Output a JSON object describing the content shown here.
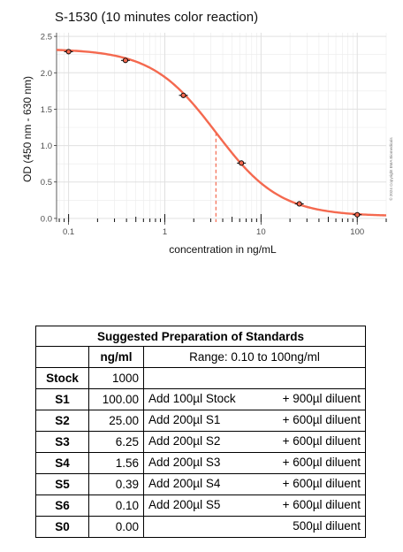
{
  "chart_data": {
    "type": "line",
    "title": "S-1530 (10 minutes color reaction)",
    "xlabel": "concentration in ng/mL",
    "ylabel": "OD (450 nm - 630 nm)",
    "x_scale": "log",
    "xlim": [
      0.075,
      200
    ],
    "ylim": [
      -0.05,
      2.55
    ],
    "x_ticks": [
      0.1,
      1,
      10,
      100
    ],
    "x_tick_labels": [
      "0.1",
      "1",
      "10",
      "100"
    ],
    "y_ticks": [
      0.0,
      0.5,
      1.0,
      1.5,
      2.0,
      2.5
    ],
    "y_tick_labels": [
      "0.0",
      "0.5",
      "1.0",
      "1.5",
      "2.0",
      "2.5"
    ],
    "grid": true,
    "series": [
      {
        "x": [
          0.1,
          0.39,
          1.56,
          6.25,
          25.0,
          100.0
        ],
        "y": [
          2.29,
          2.17,
          1.69,
          0.76,
          0.2,
          0.05
        ]
      }
    ],
    "curve": {
      "bottom": 0.03,
      "top": 2.33,
      "ec50": 3.4,
      "hill": 1.3
    },
    "midpoint_line": {
      "x": 3.4,
      "y": 1.18
    },
    "copyright": "© 2024 Copyright BMA Biomedicals",
    "colors": {
      "curve": "#f4694f",
      "points": "#000000",
      "grid": "#ebebeb",
      "midpoint": "#f4694f"
    }
  },
  "table": {
    "title": "Suggested Preparation of Standards",
    "col_conc": "ng/ml",
    "range": "Range: 0.10 to 100ng/ml",
    "rows": [
      {
        "name": "Stock",
        "conc": "1000",
        "step": "",
        "diluent": ""
      },
      {
        "name": "S1",
        "conc": "100.00",
        "step": "Add 100µl Stock",
        "diluent": "+ 900µl diluent"
      },
      {
        "name": "S2",
        "conc": "25.00",
        "step": "Add 200µl S1",
        "diluent": "+ 600µl diluent"
      },
      {
        "name": "S3",
        "conc": "6.25",
        "step": "Add 200µl S2",
        "diluent": "+ 600µl diluent"
      },
      {
        "name": "S4",
        "conc": "1.56",
        "step": "Add 200µl S3",
        "diluent": "+ 600µl diluent"
      },
      {
        "name": "S5",
        "conc": "0.39",
        "step": "Add 200µl S4",
        "diluent": "+ 600µl diluent"
      },
      {
        "name": "S6",
        "conc": "0.10",
        "step": "Add 200µl S5",
        "diluent": "+ 600µl diluent"
      },
      {
        "name": "S0",
        "conc": "0.00",
        "step": "",
        "diluent": "500µl diluent"
      }
    ]
  }
}
